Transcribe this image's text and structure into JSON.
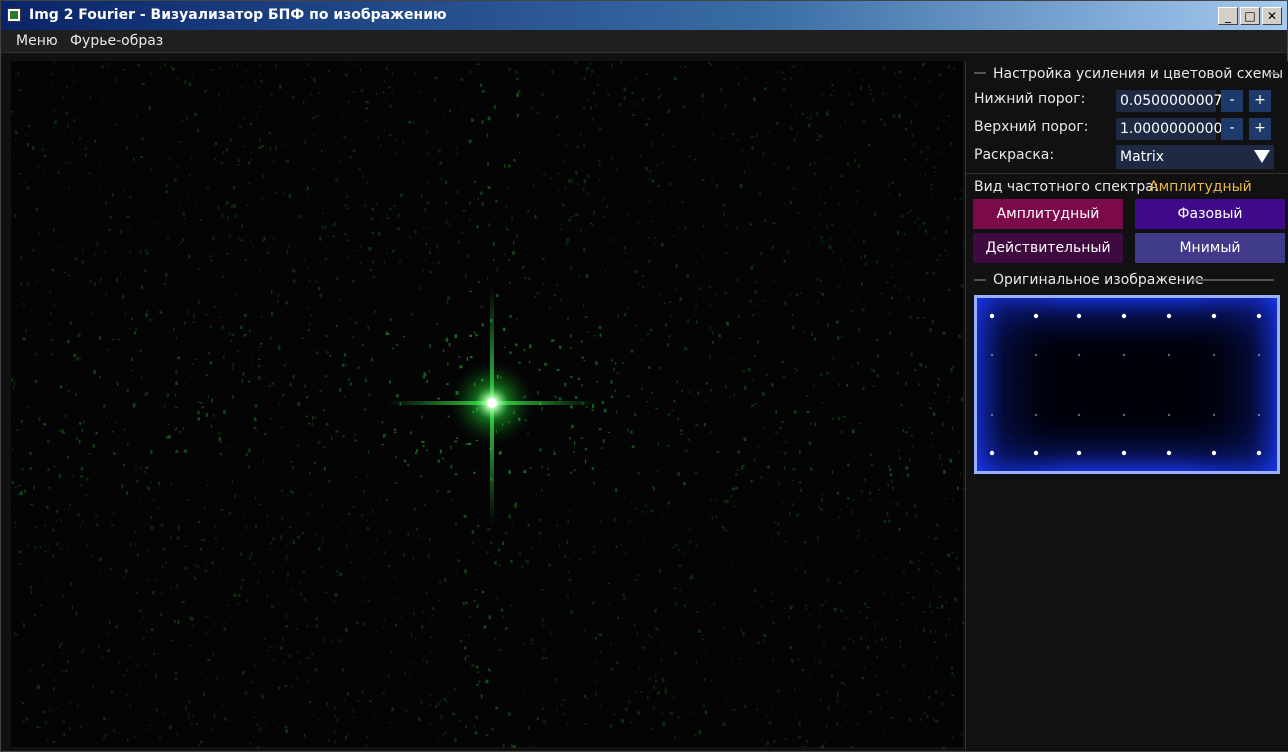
{
  "window": {
    "title": "Img 2 Fourier - Визуализатор БПФ по изображению",
    "minimize_label": "_",
    "maximize_label": "□",
    "close_label": "✕",
    "titlebar_color": "#0a246a"
  },
  "menubar": {
    "items": [
      "Меню",
      "Фурье-образ"
    ]
  },
  "spectrum": {
    "color_scheme_color": "#33ff55",
    "icon": "fourier-spectrum"
  },
  "settings": {
    "title": "Настройка усиления и цветовой схемы",
    "lower_label": "Нижний порог:",
    "lower_value": "0.0500000007",
    "upper_label": "Верхний порог:",
    "upper_value": "1.0000000000",
    "minus_label": "-",
    "plus_label": "+",
    "coloring_label": "Раскраска:",
    "coloring_value": "Matrix"
  },
  "view": {
    "label": "Вид частотного спектра:",
    "current": "Амплитудный",
    "buttons": [
      {
        "label": "Амплитудный",
        "color": "#7a0a4a"
      },
      {
        "label": "Фазовый",
        "color": "#3f0a8a"
      },
      {
        "label": "Действительный",
        "color": "#3f0a3f"
      },
      {
        "label": "Мнимый",
        "color": "#3f3a8a"
      }
    ]
  },
  "original": {
    "title": "Оригинальное изображение",
    "preview_color": "#1a3aff"
  }
}
